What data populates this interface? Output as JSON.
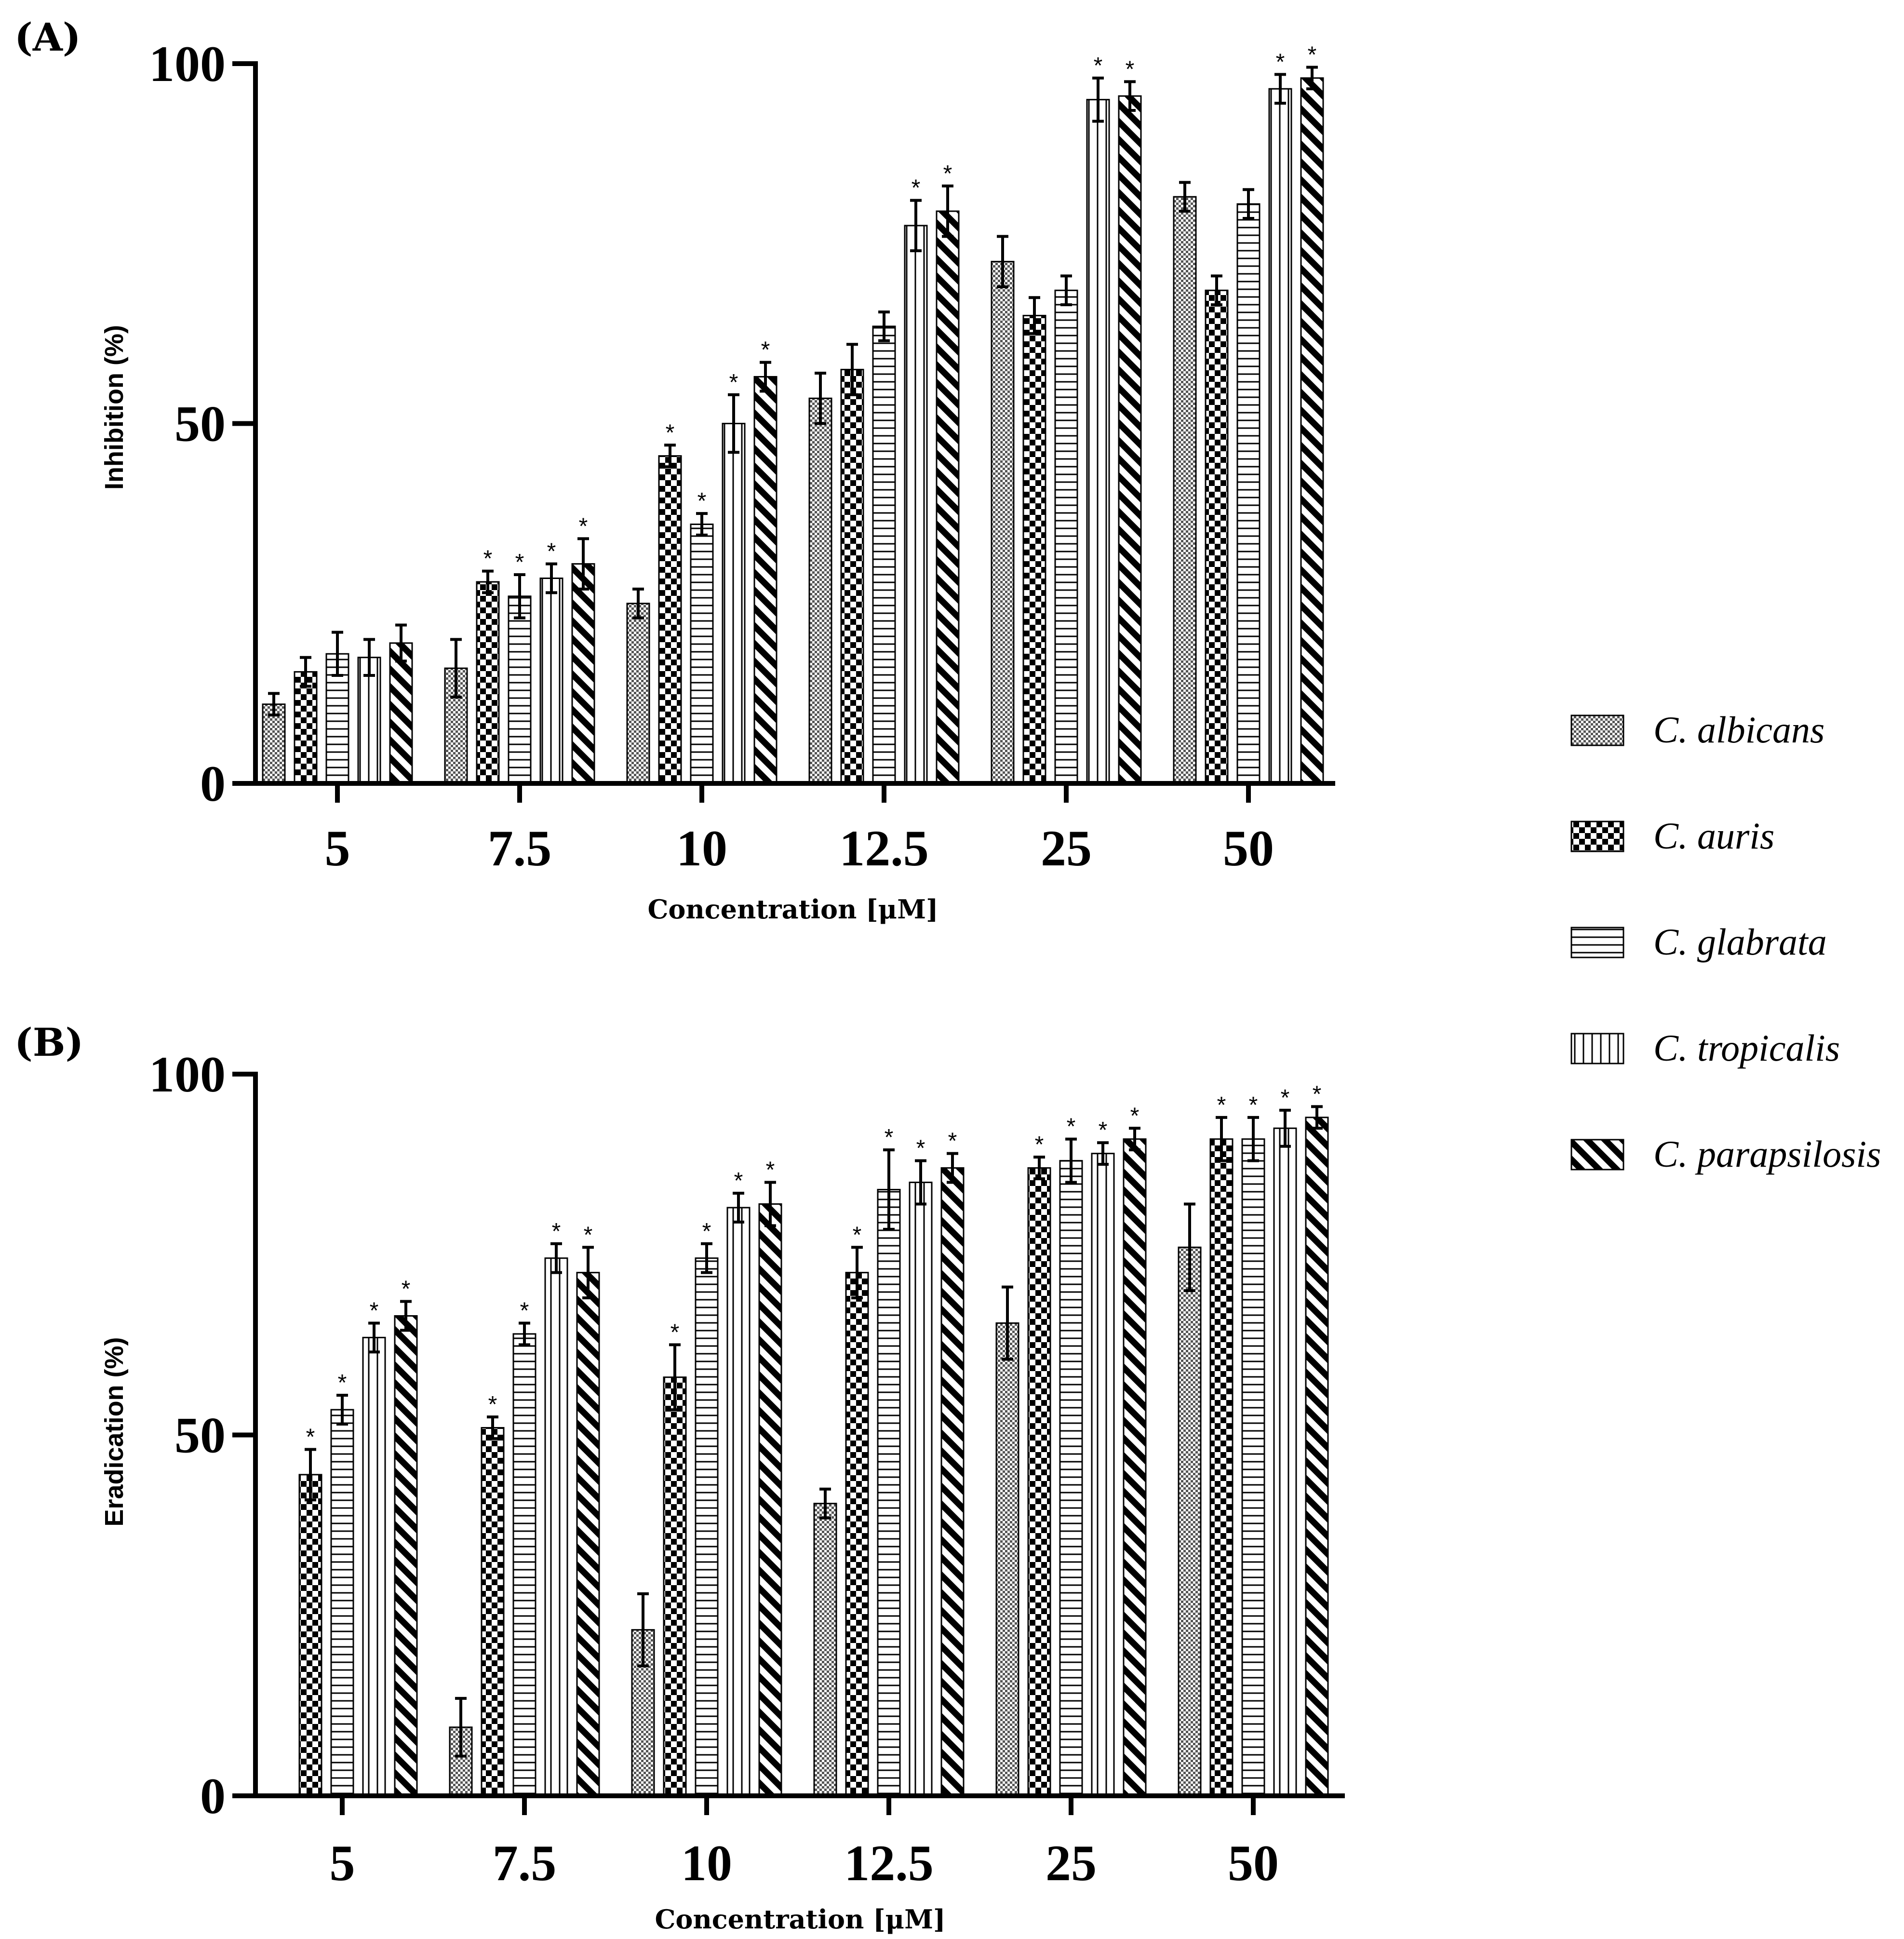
{
  "figure": {
    "legend": [
      {
        "name": "C. albicans",
        "pattern": "fine-check"
      },
      {
        "name": "C. auris",
        "pattern": "checker"
      },
      {
        "name": "C. glabrata",
        "pattern": "hlines"
      },
      {
        "name": "C. tropicalis",
        "pattern": "vlines"
      },
      {
        "name": "C. parapsilosis",
        "pattern": "diag"
      }
    ]
  },
  "chart_data": [
    {
      "type": "bar",
      "panel_label": "(A)",
      "xlabel": "Concentration [μM]",
      "ylabel": "Inhibition (%)",
      "ylim": [
        0,
        100
      ],
      "yticks": [
        "0",
        "50",
        "100"
      ],
      "categories": [
        "5",
        "7.5",
        "10",
        "12.5",
        "25",
        "50"
      ],
      "series": [
        {
          "name": "C. albicans",
          "values": [
            11,
            16,
            25,
            53.5,
            72.5,
            81.5
          ],
          "errors": [
            1.5,
            4,
            2,
            3.5,
            3.5,
            2
          ],
          "sig": [
            false,
            false,
            false,
            false,
            false,
            false
          ]
        },
        {
          "name": "C. auris",
          "values": [
            15.5,
            28,
            45.5,
            57.5,
            65,
            68.5
          ],
          "errors": [
            2,
            1.5,
            1.5,
            3.5,
            2.5,
            2
          ],
          "sig": [
            false,
            true,
            true,
            false,
            false,
            false
          ]
        },
        {
          "name": "C. glabrata",
          "values": [
            18,
            26,
            36,
            63.5,
            68.5,
            80.5
          ],
          "errors": [
            3,
            3,
            1.5,
            2,
            2,
            2
          ],
          "sig": [
            false,
            true,
            true,
            false,
            false,
            false
          ]
        },
        {
          "name": "C. tropicalis",
          "values": [
            17.5,
            28.5,
            50,
            77.5,
            95,
            96.5
          ],
          "errors": [
            2.5,
            2,
            4,
            3.5,
            3,
            2
          ],
          "sig": [
            false,
            true,
            true,
            true,
            true,
            true
          ]
        },
        {
          "name": "C. parapsilosis",
          "values": [
            19.5,
            30.5,
            56.5,
            79.5,
            95.5,
            98
          ],
          "errors": [
            2.5,
            3.5,
            2,
            3.5,
            2,
            1.5
          ],
          "sig": [
            false,
            true,
            true,
            true,
            true,
            true
          ]
        }
      ]
    },
    {
      "type": "bar",
      "panel_label": "(B)",
      "xlabel": "Concentration [μM]",
      "ylabel": "Eradication (%)",
      "ylim": [
        0,
        100
      ],
      "yticks": [
        "0",
        "50",
        "100"
      ],
      "categories": [
        "5",
        "7.5",
        "10",
        "12.5",
        "25",
        "50"
      ],
      "series": [
        {
          "name": "C. albicans",
          "values": [
            0,
            9.5,
            23,
            40.5,
            65.5,
            76
          ],
          "errors": [
            0,
            4,
            5,
            2,
            5,
            6
          ],
          "sig": [
            false,
            false,
            false,
            false,
            false,
            false
          ]
        },
        {
          "name": "C. auris",
          "values": [
            44.5,
            51,
            58,
            72.5,
            87,
            91
          ],
          "errors": [
            3.5,
            1.5,
            4.5,
            3.5,
            1.5,
            3
          ],
          "sig": [
            true,
            true,
            true,
            true,
            true,
            true
          ]
        },
        {
          "name": "C. glabrata",
          "values": [
            53.5,
            64,
            74.5,
            84,
            88,
            91
          ],
          "errors": [
            2,
            1.5,
            2,
            5.5,
            3,
            3
          ],
          "sig": [
            true,
            true,
            true,
            true,
            true,
            true
          ]
        },
        {
          "name": "C. tropicalis",
          "values": [
            63.5,
            74.5,
            81.5,
            85,
            89,
            92.5
          ],
          "errors": [
            2,
            2,
            2,
            3,
            1.5,
            2.5
          ],
          "sig": [
            true,
            true,
            true,
            true,
            true,
            true
          ]
        },
        {
          "name": "C. parapsilosis",
          "values": [
            66.5,
            72.5,
            82,
            87,
            91,
            94
          ],
          "errors": [
            2,
            3.5,
            3,
            2,
            1.5,
            1.5
          ],
          "sig": [
            true,
            true,
            true,
            true,
            true,
            true
          ]
        }
      ]
    }
  ]
}
